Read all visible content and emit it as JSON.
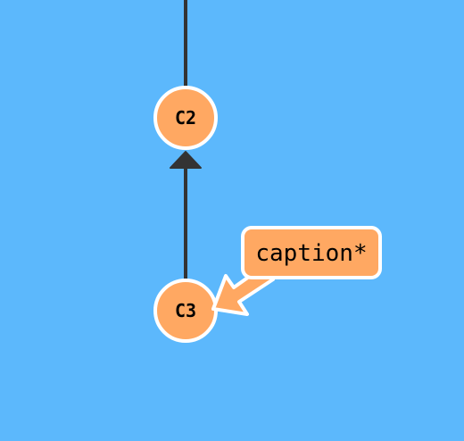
{
  "colors": {
    "background": "#5cb8fc",
    "commit_fill": "#ffa862",
    "branch_fill": "#ffa862",
    "outline": "#ffffff",
    "edge": "#333333",
    "text": "#000000"
  },
  "commits": [
    {
      "id": "C2",
      "label": "C2"
    },
    {
      "id": "C3",
      "label": "C3"
    }
  ],
  "edges": [
    {
      "from": "C3",
      "to": "C2"
    }
  ],
  "branch": {
    "label": "caption*",
    "points_to": "C3"
  }
}
